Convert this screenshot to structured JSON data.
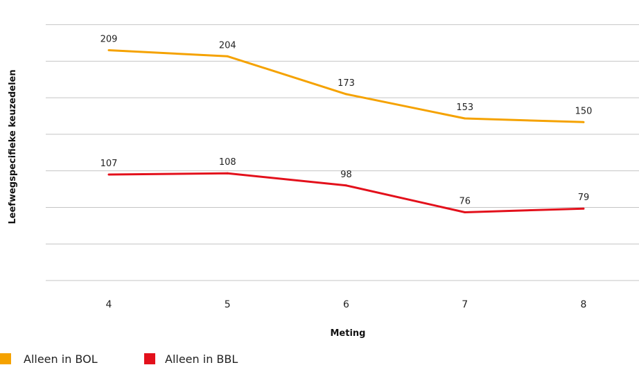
{
  "chart_data": {
    "type": "line",
    "title": "",
    "xlabel": "Meting",
    "ylabel": "Leefwegspecifieke keuzedelen",
    "x": [
      4,
      5,
      6,
      7,
      8
    ],
    "categories": [
      "4",
      "5",
      "6",
      "7",
      "8"
    ],
    "ylim": [
      20,
      240
    ],
    "y_gridlines": [
      20,
      50,
      80,
      110,
      140,
      170,
      200,
      230
    ],
    "grid": true,
    "legend_position": "bottom-left",
    "series": [
      {
        "name": "Alleen in BOL",
        "color": "#f5a200",
        "values": [
          209,
          204,
          173,
          153,
          150
        ],
        "labels": [
          "209",
          "204",
          "173",
          "153",
          "150"
        ]
      },
      {
        "name": "Alleen in BBL",
        "color": "#e3101b",
        "values": [
          107,
          108,
          98,
          76,
          79
        ],
        "labels": [
          "107",
          "108",
          "98",
          "76",
          "79"
        ]
      }
    ]
  }
}
